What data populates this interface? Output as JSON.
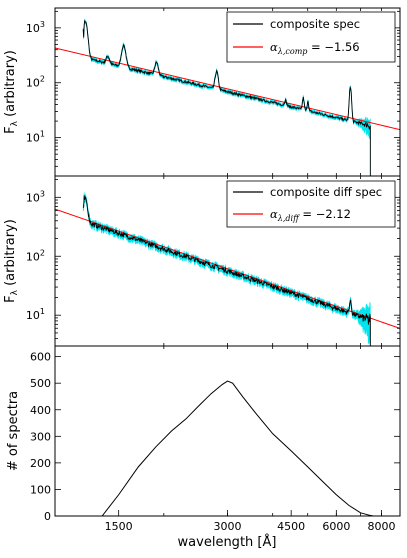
{
  "chart_data": [
    {
      "type": "line",
      "xlabel": "",
      "ylabel": "F",
      "ylabel_sub": "λ",
      "ylabel_rest": " (arbitrary)",
      "yscale": "log",
      "xscale": "log",
      "xlim": [
        1000,
        9000
      ],
      "ylim": [
        2,
        2300
      ],
      "yticks": [
        {
          "value": 10,
          "base": "10",
          "exp": "1"
        },
        {
          "value": 100,
          "base": "10",
          "exp": "2"
        },
        {
          "value": 1000,
          "base": "10",
          "exp": "3"
        }
      ],
      "legend": {
        "position": "top-right",
        "entries": [
          {
            "label": "composite spec",
            "color": "#000000"
          },
          {
            "label": "α",
            "sub": "λ,comp",
            "value": " = −1.56",
            "color": "#ff0000"
          }
        ]
      },
      "series": [
        {
          "role": "composite spectrum",
          "color": "#000000",
          "error_color": "#00e5ee",
          "error_frac": 0.07,
          "continuum": {
            "a": 380,
            "alpha": -1.56
          },
          "lines": [
            {
              "x": 1215,
              "amp": 3.5,
              "w": 0.012
            },
            {
              "x": 1400,
              "amp": 0.35,
              "w": 0.01
            },
            {
              "x": 1549,
              "amp": 1.5,
              "w": 0.012
            },
            {
              "x": 1909,
              "amp": 0.7,
              "w": 0.01
            },
            {
              "x": 2800,
              "amp": 1.1,
              "w": 0.009
            },
            {
              "x": 4340,
              "amp": 0.25,
              "w": 0.006
            },
            {
              "x": 4861,
              "amp": 0.65,
              "w": 0.005
            },
            {
              "x": 5007,
              "amp": 0.55,
              "w": 0.004
            },
            {
              "x": 6563,
              "amp": 3.2,
              "w": 0.006
            }
          ],
          "x_end": 7450,
          "noise": 0.05
        },
        {
          "role": "power-law fit",
          "color": "#ff0000",
          "a": 430,
          "alpha": -1.56
        }
      ]
    },
    {
      "type": "line",
      "xlabel": "",
      "ylabel": "F",
      "ylabel_sub": "λ",
      "ylabel_rest": " (arbitrary)",
      "yscale": "log",
      "xscale": "log",
      "xlim": [
        1000,
        9000
      ],
      "ylim": [
        3,
        2300
      ],
      "yticks": [
        {
          "value": 10,
          "base": "10",
          "exp": "1"
        },
        {
          "value": 100,
          "base": "10",
          "exp": "2"
        },
        {
          "value": 1000,
          "base": "10",
          "exp": "3"
        }
      ],
      "legend": {
        "position": "top-right",
        "entries": [
          {
            "label": "composite diff spec",
            "color": "#000000"
          },
          {
            "label": "α",
            "sub": "λ,diff",
            "value": " = −2.12",
            "color": "#ff0000"
          }
        ]
      },
      "series": [
        {
          "role": "composite difference spectrum",
          "color": "#000000",
          "error_color": "#00e5ee",
          "error_frac": 0.12,
          "continuum": {
            "a": 580,
            "alpha": -2.12
          },
          "lines": [
            {
              "x": 1215,
              "amp": 1.4,
              "w": 0.012
            },
            {
              "x": 6563,
              "amp": 0.6,
              "w": 0.006
            }
          ],
          "x_end": 7450,
          "noise": 0.09
        },
        {
          "role": "power-law fit",
          "color": "#ff0000",
          "a": 630,
          "alpha": -2.12
        }
      ]
    },
    {
      "type": "line",
      "xlabel": "wavelength [Å]",
      "ylabel": "# of spectra",
      "xscale": "log",
      "xlim": [
        1000,
        9000
      ],
      "ylim": [
        0,
        640
      ],
      "yticks": [
        0,
        100,
        200,
        300,
        400,
        500,
        600
      ],
      "xticks": [
        1500,
        3000,
        4500,
        6000,
        8000
      ],
      "series": [
        {
          "role": "number of spectra",
          "color": "#000000",
          "x": [
            1350,
            1500,
            1700,
            1900,
            2100,
            2300,
            2500,
            2700,
            2900,
            3000,
            3100,
            3300,
            3600,
            4000,
            4500,
            5000,
            5500,
            6000,
            6500,
            7000,
            7400,
            7600,
            8000,
            9000
          ],
          "y": [
            0,
            80,
            185,
            260,
            320,
            365,
            415,
            460,
            495,
            508,
            500,
            450,
            385,
            310,
            245,
            185,
            130,
            80,
            40,
            12,
            3,
            0,
            0,
            0
          ]
        }
      ]
    }
  ]
}
